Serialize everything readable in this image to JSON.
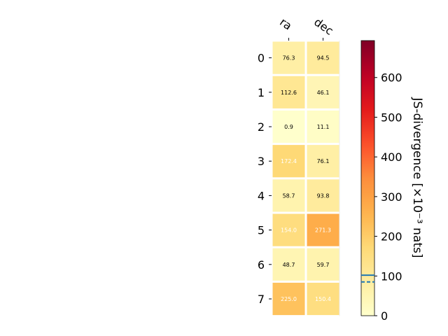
{
  "chart_data": {
    "type": "heatmap",
    "title": "",
    "columns": [
      "ra",
      "dec"
    ],
    "rows": [
      "0",
      "1",
      "2",
      "3",
      "4",
      "5",
      "6",
      "7"
    ],
    "values": [
      [
        76.3,
        94.5
      ],
      [
        112.6,
        46.1
      ],
      [
        0.9,
        11.1
      ],
      [
        172.4,
        76.1
      ],
      [
        58.7,
        93.8
      ],
      [
        154.0,
        271.3
      ],
      [
        48.7,
        59.7
      ],
      [
        225.0,
        150.4
      ]
    ],
    "value_labels": [
      [
        "76.3",
        "94.5"
      ],
      [
        "112.6",
        "46.1"
      ],
      [
        "0.9",
        "11.1"
      ],
      [
        "172.4",
        "76.1"
      ],
      [
        "58.7",
        "93.8"
      ],
      [
        "154.0",
        "271.3"
      ],
      [
        "48.7",
        "59.7"
      ],
      [
        "225.0",
        "150.4"
      ]
    ],
    "colorbar": {
      "label": "JS-divergence [×10⁻³ nats]",
      "range": [
        0,
        693
      ],
      "ticks": [
        0,
        100,
        200,
        300,
        400,
        500,
        600
      ],
      "tick_labels": [
        "0",
        "100",
        "200",
        "300",
        "400",
        "500",
        "600"
      ],
      "reference_line_solid": 102,
      "reference_line_dashed": 85,
      "reference_line_color": "#1f77b4",
      "colormap": "YlOrRd"
    }
  }
}
